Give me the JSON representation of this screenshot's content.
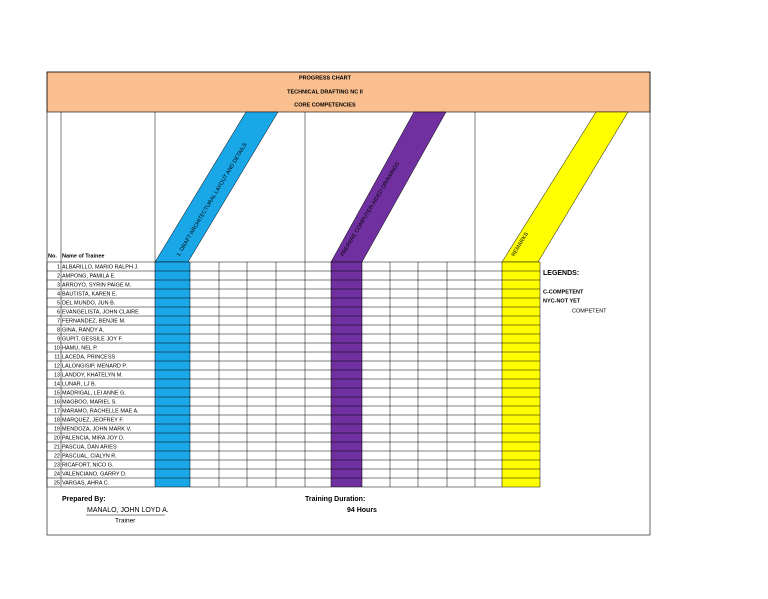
{
  "header": {
    "title": "PROGRESS CHART",
    "subtitle": "TECHNICAL DRAFTING NC II",
    "section": "CORE COMPETENCIES"
  },
  "competencies": [
    "1. DRAFT ARCHITECTURAL LAYOUT AND DETAILS",
    "PREPARE COMPUTER-AIDED DRAWINGS",
    "REMARKS"
  ],
  "table": {
    "columns": [
      "No.",
      "Name of Trainee"
    ],
    "rows": [
      [
        1,
        "ALBARILLO, MARIO RALPH J."
      ],
      [
        2,
        "AMPONG, PAMILA E."
      ],
      [
        3,
        "ARROYO, SYRIN PAIGE M."
      ],
      [
        4,
        "BAUTISTA, KAREN E."
      ],
      [
        5,
        "DEL MUNDO, JUN B."
      ],
      [
        6,
        "EVANGELISTA, JOHN CLAIRE"
      ],
      [
        7,
        "FERNANDEZ, BENJIE M."
      ],
      [
        8,
        "GINA, RANDY A."
      ],
      [
        9,
        "GUPIT, GESSILE JOY F."
      ],
      [
        10,
        "HAMU, NEL P."
      ],
      [
        11,
        "LACEDA, PRINCESS"
      ],
      [
        12,
        "LALONGISIP, MENARD P."
      ],
      [
        13,
        "LANDOY, KHATELYN M."
      ],
      [
        14,
        "LUNAR, LJ B."
      ],
      [
        15,
        "MADRIGAL, LEI ANNE G."
      ],
      [
        16,
        "MAGBOO, MARIEL S."
      ],
      [
        17,
        "MARAMO, RACHELLE MAE A."
      ],
      [
        18,
        "MARQUEZ, JEOFREY F."
      ],
      [
        19,
        "MENDOZA, JOHN MARK V."
      ],
      [
        20,
        "PALENCIA, MIRA JOY D."
      ],
      [
        21,
        "PASCUA, DAN ARIES"
      ],
      [
        22,
        "PASCUAL, CIALYN R."
      ],
      [
        23,
        "RICAFORT, NICO G."
      ],
      [
        24,
        "VALENCIANO, GARRY D."
      ],
      [
        25,
        "VARGAS, AHRA C."
      ]
    ]
  },
  "legend": {
    "title": "LEGENDS:",
    "items": [
      "C-COMPETENT",
      "NYC-NOT YET",
      "COMPETENT"
    ]
  },
  "footer": {
    "prepared_label": "Prepared By:",
    "trainer_name": "MANALO, JOHN LOYD A.",
    "trainer_role": "Trainer",
    "duration_label": "Training Duration:",
    "duration": "94 Hours"
  }
}
